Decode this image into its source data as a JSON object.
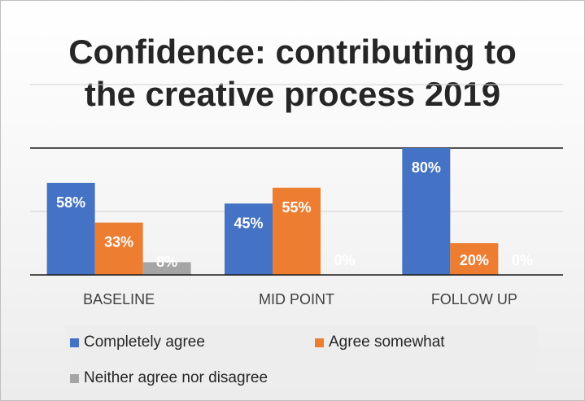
{
  "chart_data": {
    "type": "bar",
    "title": "Confidence: contributing to the creative process 2019",
    "title_lines": [
      "Confidence: contributing to",
      "the creative process 2019"
    ],
    "categories": [
      "BASELINE",
      "MID POINT",
      "FOLLOW UP"
    ],
    "series": [
      {
        "name": "Completely agree",
        "color": "#4472c4",
        "values": [
          58,
          45,
          80
        ],
        "labels": [
          "58%",
          "45%",
          "80%"
        ]
      },
      {
        "name": "Agree somewhat",
        "color": "#ed7d31",
        "values": [
          33,
          55,
          20
        ],
        "labels": [
          "33%",
          "55%",
          "20%"
        ]
      },
      {
        "name": "Neither agree nor disagree",
        "color": "#a5a5a5",
        "values": [
          8,
          0,
          0
        ],
        "labels": [
          "8%",
          "0%",
          "0%"
        ]
      }
    ],
    "ylim": [
      0,
      120
    ],
    "legend_position": "bottom",
    "grid": true
  }
}
